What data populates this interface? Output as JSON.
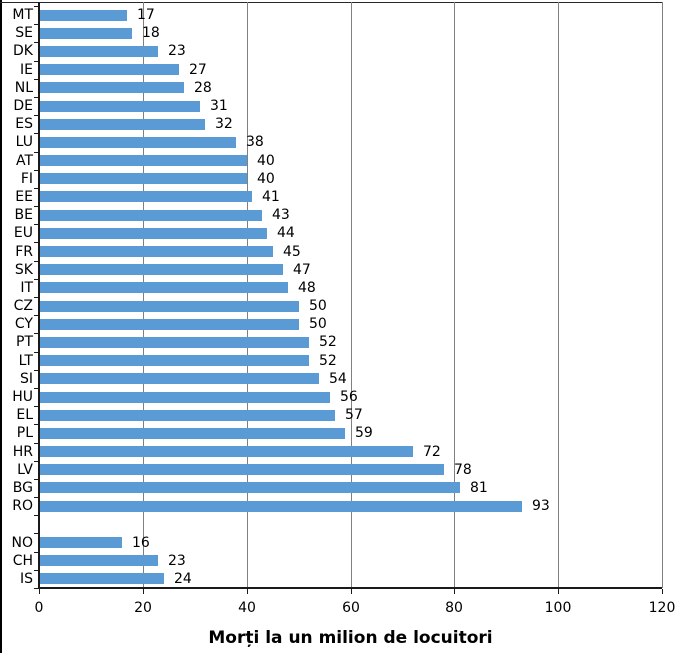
{
  "chart_data": {
    "type": "bar",
    "orientation": "horizontal",
    "title": "",
    "xlabel": "Morți la un milion de locuitori",
    "ylabel": "",
    "xlim": [
      0,
      120
    ],
    "xticks": [
      0,
      20,
      40,
      60,
      80,
      100,
      120
    ],
    "grid": true,
    "value_labels_shown": true,
    "bar_color": "#5b9bd5",
    "gridline_color": "#808080",
    "axis_color": "#1a1a1a",
    "text_color": "#000000",
    "groups": [
      {
        "name": "eu-countries",
        "categories": [
          "MT",
          "SE",
          "DK",
          "IE",
          "NL",
          "DE",
          "ES",
          "LU",
          "AT",
          "FI",
          "EE",
          "BE",
          "EU",
          "FR",
          "SK",
          "IT",
          "CZ",
          "CY",
          "PT",
          "LT",
          "SI",
          "HU",
          "EL",
          "PL",
          "HR",
          "LV",
          "BG",
          "RO"
        ],
        "values": [
          17,
          18,
          23,
          27,
          28,
          31,
          32,
          38,
          40,
          40,
          41,
          43,
          44,
          45,
          47,
          48,
          50,
          50,
          52,
          52,
          54,
          56,
          57,
          59,
          72,
          78,
          81,
          93
        ]
      },
      {
        "name": "efta-countries",
        "categories": [
          "NO",
          "CH",
          "IS"
        ],
        "values": [
          16,
          23,
          24
        ]
      }
    ]
  }
}
